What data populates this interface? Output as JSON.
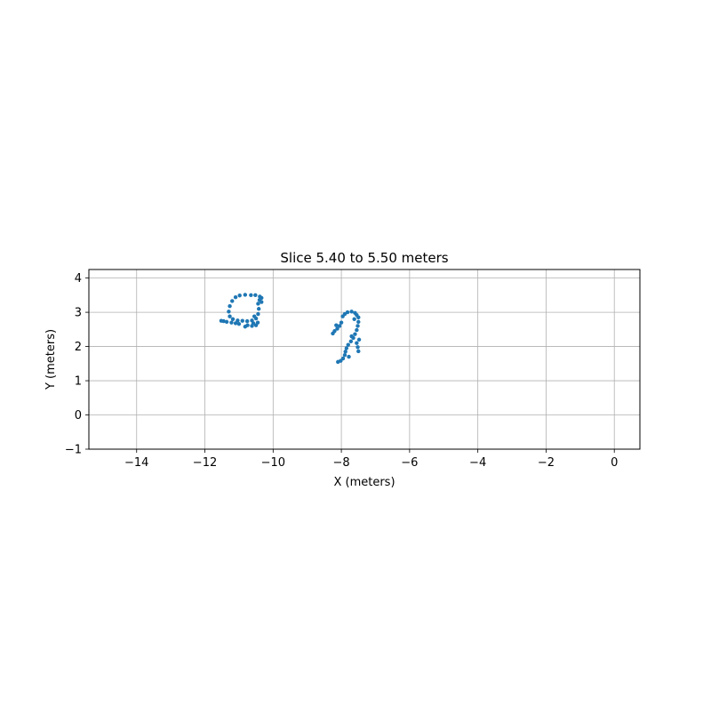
{
  "chart_data": {
    "type": "scatter",
    "title": "Slice 5.40 to 5.50 meters",
    "xlabel": "X (meters)",
    "ylabel": "Y (meters)",
    "xlim": [
      -15.4,
      0.75
    ],
    "ylim": [
      -1.0,
      4.25
    ],
    "grid": true,
    "xticks": [
      -14,
      -12,
      -10,
      -8,
      -6,
      -4,
      -2,
      0
    ],
    "xtick_labels": [
      "−14",
      "−12",
      "−10",
      "−8",
      "−6",
      "−4",
      "−2",
      "0"
    ],
    "yticks": [
      -1,
      0,
      1,
      2,
      3,
      4
    ],
    "ytick_labels": [
      "−1",
      "0",
      "1",
      "2",
      "3",
      "4"
    ],
    "series": [
      {
        "color": "#1f77b4",
        "clusters": [
          {
            "description": "ring",
            "points": [
              [
                -10.65,
                3.5
              ],
              [
                -10.82,
                3.51
              ],
              [
                -10.98,
                3.49
              ],
              [
                -11.1,
                3.44
              ],
              [
                -11.2,
                3.33
              ],
              [
                -11.27,
                3.18
              ],
              [
                -11.3,
                3.02
              ],
              [
                -11.27,
                2.88
              ],
              [
                -11.18,
                2.8
              ],
              [
                -11.04,
                2.76
              ],
              [
                -10.9,
                2.75
              ],
              [
                -10.76,
                2.74
              ],
              [
                -10.62,
                2.76
              ],
              [
                -10.5,
                2.82
              ],
              [
                -10.44,
                2.95
              ],
              [
                -10.42,
                3.1
              ],
              [
                -10.44,
                3.25
              ],
              [
                -10.4,
                3.36
              ],
              [
                -10.34,
                3.42
              ],
              [
                -10.34,
                3.3
              ],
              [
                -10.39,
                3.46
              ],
              [
                -10.52,
                3.5
              ],
              [
                -10.45,
                2.7
              ],
              [
                -10.5,
                2.62
              ],
              [
                -10.62,
                2.6
              ],
              [
                -10.75,
                2.62
              ],
              [
                -10.82,
                2.58
              ],
              [
                -11.36,
                2.72
              ],
              [
                -11.45,
                2.74
              ],
              [
                -11.52,
                2.75
              ],
              [
                -11.22,
                2.7
              ],
              [
                -11.1,
                2.68
              ],
              [
                -11.0,
                2.66
              ],
              [
                -10.55,
                2.88
              ],
              [
                -10.58,
                2.68
              ]
            ]
          },
          {
            "description": "hook",
            "points": [
              [
                -7.6,
                2.98
              ],
              [
                -7.7,
                3.02
              ],
              [
                -7.82,
                3.0
              ],
              [
                -7.9,
                2.95
              ],
              [
                -7.96,
                2.88
              ],
              [
                -7.55,
                2.92
              ],
              [
                -7.5,
                2.85
              ],
              [
                -7.5,
                2.72
              ],
              [
                -7.52,
                2.6
              ],
              [
                -7.55,
                2.48
              ],
              [
                -7.6,
                2.36
              ],
              [
                -7.65,
                2.25
              ],
              [
                -7.72,
                2.15
              ],
              [
                -7.8,
                2.05
              ],
              [
                -7.85,
                1.95
              ],
              [
                -7.88,
                1.85
              ],
              [
                -7.9,
                1.75
              ],
              [
                -7.95,
                1.65
              ],
              [
                -8.02,
                1.58
              ],
              [
                -8.1,
                1.55
              ],
              [
                -7.55,
                2.1
              ],
              [
                -7.52,
                1.98
              ],
              [
                -7.5,
                1.86
              ],
              [
                -7.48,
                2.2
              ],
              [
                -8.05,
                2.6
              ],
              [
                -8.12,
                2.52
              ],
              [
                -8.2,
                2.45
              ],
              [
                -8.25,
                2.38
              ],
              [
                -8.0,
                2.7
              ],
              [
                -7.78,
                1.7
              ],
              [
                -7.7,
                2.3
              ],
              [
                -7.62,
                2.8
              ],
              [
                -8.15,
                2.62
              ]
            ]
          }
        ]
      }
    ]
  }
}
